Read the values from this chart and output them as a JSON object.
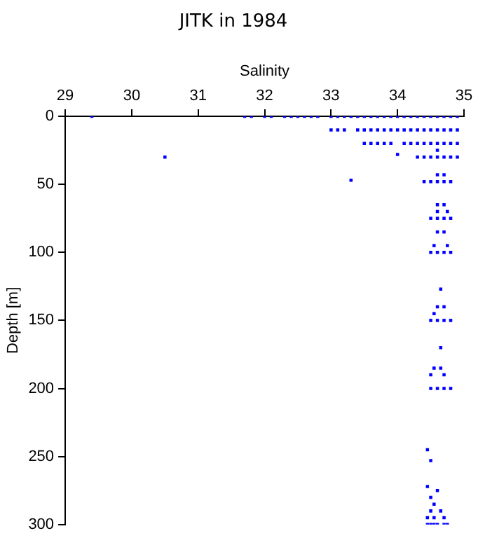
{
  "chart_data": {
    "type": "scatter",
    "title": "JITK in 1984",
    "xlabel": "Salinity",
    "ylabel": "Depth [m]",
    "xlim": [
      29,
      35
    ],
    "xticks": [
      29,
      30,
      31,
      32,
      33,
      34,
      35
    ],
    "ylim": [
      300,
      0
    ],
    "yticks": [
      0,
      50,
      100,
      150,
      200,
      250,
      300
    ],
    "grid": false,
    "legend": false,
    "marker": "square",
    "series": [
      {
        "color": "#0000ff",
        "x": [
          29.4,
          31.7,
          31.8,
          32.0,
          32.1,
          32.3,
          32.4,
          32.5,
          32.6,
          32.7,
          32.8,
          33.0,
          33.1,
          33.2,
          33.3,
          33.4,
          33.5,
          33.6,
          33.7,
          33.8,
          33.9,
          34.0,
          34.1,
          34.2,
          34.3,
          34.4,
          34.5,
          34.6,
          34.7,
          34.8,
          34.9,
          33.0,
          33.1,
          33.2,
          33.4,
          33.5,
          33.6,
          33.7,
          33.8,
          33.9,
          34.0,
          34.1,
          34.2,
          34.3,
          34.4,
          34.5,
          34.6,
          34.7,
          34.8,
          34.9,
          33.5,
          33.6,
          33.7,
          33.8,
          33.9,
          34.1,
          34.2,
          34.3,
          34.4,
          34.5,
          34.6,
          34.7,
          34.8,
          34.9,
          34.6,
          30.5,
          34.0,
          34.3,
          34.4,
          34.5,
          34.6,
          34.7,
          34.8,
          34.9,
          34.6,
          34.7,
          33.3,
          34.4,
          34.5,
          34.6,
          34.7,
          34.8,
          34.6,
          34.7,
          34.6,
          34.75,
          34.5,
          34.6,
          34.7,
          34.8,
          34.6,
          34.7,
          34.55,
          34.75,
          34.5,
          34.6,
          34.7,
          34.8,
          34.65,
          34.6,
          34.7,
          34.55,
          34.5,
          34.6,
          34.7,
          34.8,
          34.65,
          34.55,
          34.65,
          34.5,
          34.7,
          34.5,
          34.6,
          34.7,
          34.8,
          34.45,
          34.5,
          34.45,
          34.6,
          34.5,
          34.55,
          34.5,
          34.65,
          34.45,
          34.55,
          34.7,
          34.45,
          34.5,
          34.55,
          34.6,
          34.7,
          34.75
        ],
        "values": [
          0,
          0,
          0,
          0,
          0,
          0,
          0,
          0,
          0,
          0,
          0,
          0,
          0,
          0,
          0,
          0,
          0,
          0,
          0,
          0,
          0,
          0,
          0,
          0,
          0,
          0,
          0,
          0,
          0,
          0,
          0,
          10,
          10,
          10,
          10,
          10,
          10,
          10,
          10,
          10,
          10,
          10,
          10,
          10,
          10,
          10,
          10,
          10,
          10,
          10,
          20,
          20,
          20,
          20,
          20,
          20,
          20,
          20,
          20,
          20,
          20,
          20,
          20,
          20,
          25,
          30,
          28,
          30,
          30,
          30,
          30,
          30,
          30,
          30,
          43,
          43,
          47,
          48,
          48,
          48,
          48,
          48,
          65,
          65,
          70,
          70,
          75,
          75,
          75,
          75,
          85,
          85,
          95,
          95,
          100,
          100,
          100,
          100,
          127,
          140,
          140,
          145,
          150,
          150,
          150,
          150,
          170,
          185,
          185,
          190,
          190,
          200,
          200,
          200,
          200,
          245,
          253,
          272,
          275,
          280,
          285,
          290,
          290,
          295,
          295,
          295,
          300,
          300,
          300,
          300,
          300,
          300
        ]
      }
    ]
  }
}
